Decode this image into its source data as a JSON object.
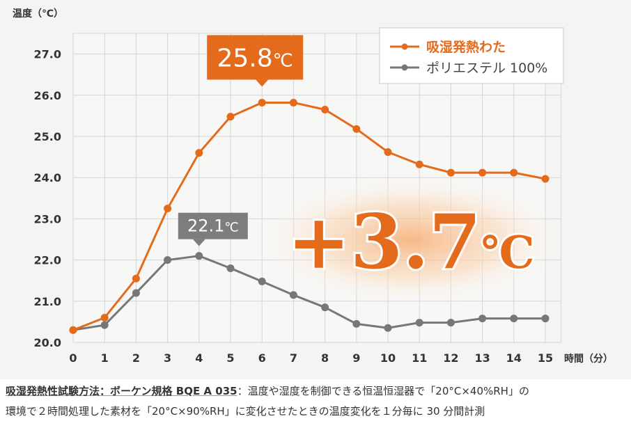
{
  "chart_data": {
    "type": "line",
    "x": [
      0,
      1,
      2,
      3,
      4,
      5,
      6,
      7,
      8,
      9,
      10,
      11,
      12,
      13,
      14,
      15
    ],
    "series": [
      {
        "name": "吸湿発熱わた",
        "color": "#e46a1c",
        "values": [
          20.3,
          20.6,
          21.55,
          23.25,
          24.6,
          25.48,
          25.82,
          25.82,
          25.65,
          25.18,
          24.62,
          24.32,
          24.12,
          24.12,
          24.12,
          23.97
        ]
      },
      {
        "name": "ポリエステル 100%",
        "color": "#777777",
        "values": [
          20.3,
          20.42,
          21.2,
          22.0,
          22.1,
          21.8,
          21.48,
          21.15,
          20.85,
          20.45,
          20.35,
          20.48,
          20.48,
          20.58,
          20.58,
          20.58
        ]
      }
    ],
    "ylabel": "温度（℃）",
    "xlabel": "時間（分）",
    "ylim": [
      20.0,
      27.5
    ],
    "yticks": [
      "20.0",
      "21.0",
      "22.0",
      "23.0",
      "24.0",
      "25.0",
      "26.0",
      "27.0"
    ],
    "xticks": [
      "0",
      "1",
      "2",
      "3",
      "4",
      "5",
      "6",
      "7",
      "8",
      "9",
      "10",
      "11",
      "12",
      "13",
      "14",
      "15"
    ],
    "grid": true,
    "legend_position": "top-right",
    "annotations": [
      {
        "text_value": "25.8",
        "text_unit": "℃",
        "x": 6,
        "y": 25.82,
        "color": "#e46a1c"
      },
      {
        "text_value": "22.1",
        "text_unit": "℃",
        "x": 4,
        "y": 22.1,
        "color": "#7d7d7d"
      }
    ],
    "highlight_value": "+3.7",
    "highlight_unit": "℃"
  },
  "footnote": {
    "method_label": "吸湿発熱性試験方法：ボーケン規格 BQE A 035",
    "line1_rest": "：温度や湿度を制御できる恒温恒湿器で「20°C×40%RH」の",
    "line2": "環境で２時間処理した素材を「20°C×90%RH」に変化させたときの温度変化を１分毎に 30 分間計測"
  }
}
